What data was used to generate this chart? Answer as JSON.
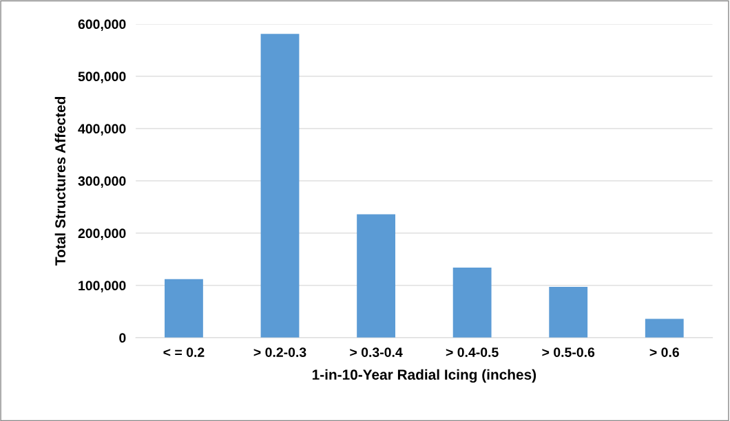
{
  "chart_data": {
    "type": "bar",
    "xlabel": "1-in-10-Year Radial Icing (inches)",
    "ylabel": "Total Structures Affected",
    "categories": [
      "< = 0.2",
      "> 0.2-0.3",
      "> 0.3-0.4",
      "> 0.4-0.5",
      "> 0.5-0.6",
      "> 0.6"
    ],
    "values": [
      112000,
      581000,
      236000,
      134000,
      97000,
      36000
    ],
    "color": "#5b9bd5",
    "ylim": [
      0,
      600000
    ],
    "yticks": [
      {
        "value": 0,
        "label": "0"
      },
      {
        "value": 100000,
        "label": "100,000"
      },
      {
        "value": 200000,
        "label": "200,000"
      },
      {
        "value": 300000,
        "label": "300,000"
      },
      {
        "value": 400000,
        "label": "400,000"
      },
      {
        "value": 500000,
        "label": "500,000"
      },
      {
        "value": 600000,
        "label": "600,000"
      }
    ],
    "grid": "y"
  }
}
